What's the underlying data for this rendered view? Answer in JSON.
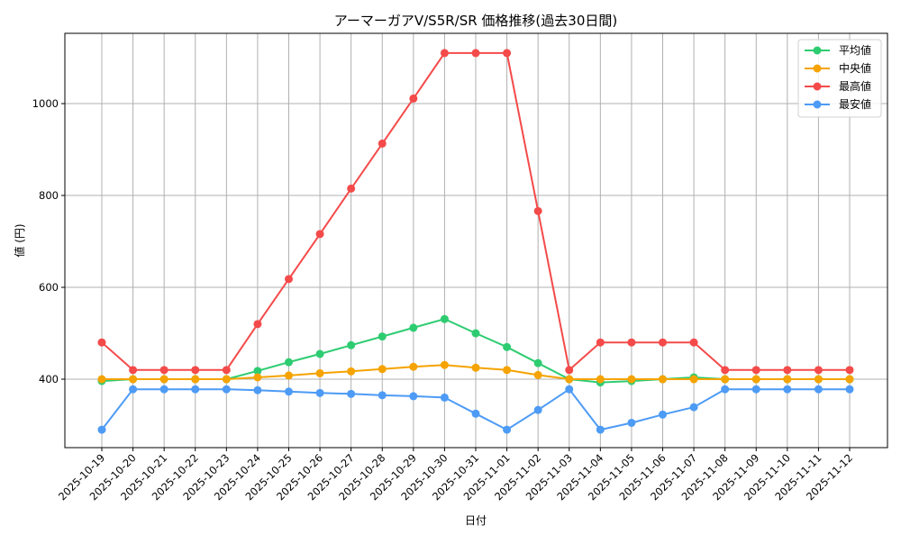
{
  "chart_data": {
    "type": "line",
    "title": "アーマーガアV/S5R/SR 価格推移(過去30日間)",
    "xlabel": "日付",
    "ylabel": "値 (円)",
    "ylim": [
      251,
      1153
    ],
    "yticks": [
      400,
      600,
      800,
      1000
    ],
    "grid": true,
    "legend_position": "upper right",
    "categories": [
      "2025-10-19",
      "2025-10-20",
      "2025-10-21",
      "2025-10-22",
      "2025-10-23",
      "2025-10-24",
      "2025-10-25",
      "2025-10-26",
      "2025-10-27",
      "2025-10-28",
      "2025-10-29",
      "2025-10-30",
      "2025-10-31",
      "2025-11-01",
      "2025-11-02",
      "2025-11-03",
      "2025-11-04",
      "2025-11-05",
      "2025-11-06",
      "2025-11-07",
      "2025-11-08",
      "2025-11-09",
      "2025-11-10",
      "2025-11-11",
      "2025-11-12"
    ],
    "series": [
      {
        "name": "平均値",
        "color": "#2ecc71",
        "values": [
          396,
          400,
          400,
          400,
          400,
          418,
          437,
          455,
          474,
          493,
          512,
          531,
          500,
          470,
          435,
          400,
          393,
          396,
          400,
          404,
          400,
          400,
          400,
          400,
          400
        ]
      },
      {
        "name": "中央値",
        "color": "#f5a300",
        "values": [
          400,
          400,
          400,
          400,
          400,
          404,
          408,
          413,
          417,
          422,
          427,
          431,
          425,
          420,
          409,
          400,
          400,
          400,
          400,
          400,
          400,
          400,
          400,
          400,
          400
        ]
      },
      {
        "name": "最高値",
        "color": "#f44a4a",
        "values": [
          480,
          420,
          420,
          420,
          420,
          520,
          618,
          716,
          815,
          913,
          1011,
          1110,
          1110,
          1110,
          766,
          420,
          480,
          480,
          480,
          480,
          420,
          420,
          420,
          420,
          420
        ]
      },
      {
        "name": "最安値",
        "color": "#4d9bf5",
        "values": [
          290,
          378,
          378,
          378,
          378,
          376,
          373,
          370,
          368,
          365,
          363,
          360,
          325,
          290,
          333,
          378,
          290,
          305,
          323,
          339,
          378,
          378,
          378,
          378,
          378
        ]
      }
    ]
  }
}
